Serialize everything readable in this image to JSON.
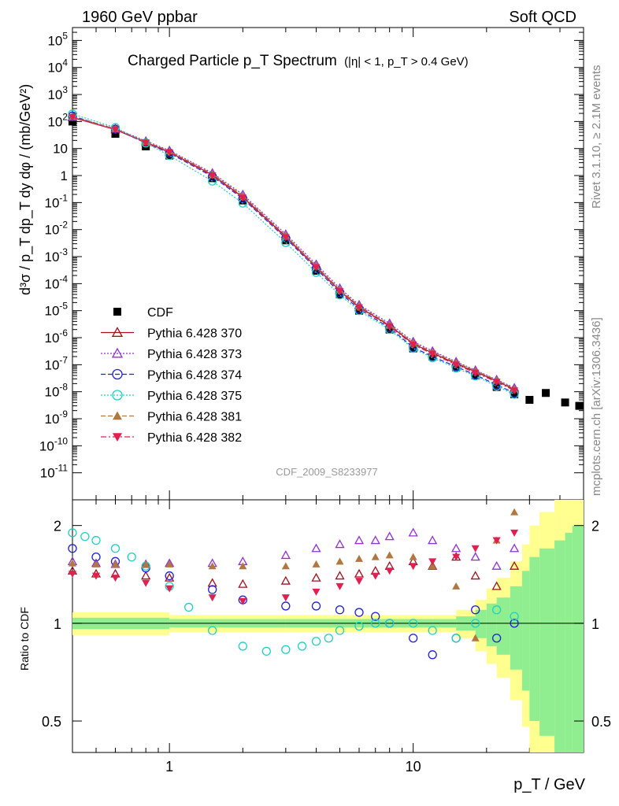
{
  "header": {
    "left": "1960 GeV ppbar",
    "right": "Soft QCD"
  },
  "side_labels": {
    "top": "Rivet 3.1.10, ≥ 2.1M events",
    "bottom": "mcplots.cern.ch [arXiv:1306.3436]"
  },
  "analysis_tag": "CDF_2009_S8233977",
  "chart_data": [
    {
      "type": "scatter",
      "title": "Charged Particle p_T Spectrum",
      "title_cut": "(|η| < 1, p_T > 0.4 GeV)",
      "xlabel": "p_T / GeV",
      "ylabel": "d³σ / p_T dp_T dy dφ / (mb/GeV²)",
      "xscale": "log",
      "yscale": "log",
      "xlim": [
        0.4,
        50
      ],
      "ylim": [
        1e-12,
        300000.0
      ],
      "x_tick_labels": [
        "1",
        "10"
      ],
      "y_tick_labels": [
        "10^-11",
        "10^-10",
        "10^-9",
        "10^-8",
        "10^-7",
        "10^-6",
        "10^-5",
        "10^-4",
        "10^-3",
        "10^-2",
        "10^-1",
        "1",
        "10",
        "10^2",
        "10^3",
        "10^4",
        "10^5"
      ],
      "legend_position": "bottom-left",
      "series": [
        {
          "name": "CDF",
          "color": "#000000",
          "marker": "square-filled",
          "line": "none",
          "x": [
            0.4,
            0.6,
            0.8,
            1.0,
            1.5,
            2.0,
            3.0,
            4.0,
            5.0,
            6.0,
            8.0,
            10.0,
            12.0,
            15.0,
            18.0,
            22.0,
            26.0,
            30.0,
            35.0,
            42.0,
            48.0
          ],
          "y": [
            100,
            35,
            12,
            5.5,
            0.8,
            0.12,
            0.004,
            0.0003,
            4e-05,
            1e-05,
            2e-06,
            4e-07,
            2e-07,
            8e-08,
            4e-08,
            1.5e-08,
            8e-09,
            5e-09,
            9e-09,
            4e-09,
            3e-09
          ]
        },
        {
          "name": "Pythia 6.428 370",
          "color": "#a01020",
          "marker": "triangle-open",
          "line": "solid",
          "x": [
            0.4,
            0.6,
            0.8,
            1.0,
            1.5,
            2.0,
            3.0,
            4.0,
            5.0,
            6.0,
            8.0,
            10.0,
            12.0,
            15.0,
            18.0,
            22.0,
            26.0
          ],
          "y": [
            140,
            50,
            17,
            7.5,
            1.05,
            0.16,
            0.0055,
            0.00042,
            5.5e-05,
            1.35e-05,
            2.8e-06,
            6e-07,
            2.7e-07,
            1.1e-07,
            5.5e-08,
            2.5e-08,
            1.2e-08
          ]
        },
        {
          "name": "Pythia 6.428 373",
          "color": "#9030d0",
          "marker": "triangle-open",
          "line": "dotted",
          "x": [
            0.4,
            0.6,
            0.8,
            1.0,
            1.5,
            2.0,
            3.0,
            4.0,
            5.0,
            6.0,
            8.0,
            10.0,
            12.0,
            15.0,
            18.0,
            22.0,
            26.0
          ],
          "y": [
            150,
            55,
            19,
            8.5,
            1.25,
            0.2,
            0.0068,
            0.00052,
            6.8e-05,
            1.65e-05,
            3.4e-06,
            7.2e-07,
            3.2e-07,
            1.3e-07,
            6.3e-08,
            2.8e-08,
            1.4e-08
          ]
        },
        {
          "name": "Pythia 6.428 374",
          "color": "#2020d0",
          "marker": "circle-open",
          "line": "dashed",
          "x": [
            0.4,
            0.6,
            0.8,
            1.0,
            1.5,
            2.0,
            3.0,
            4.0,
            5.0,
            6.0,
            8.0,
            10.0,
            12.0,
            15.0,
            18.0,
            22.0,
            26.0
          ],
          "y": [
            160,
            52,
            16,
            6.8,
            0.92,
            0.14,
            0.0048,
            0.00036,
            4.6e-05,
            1.15e-05,
            2.3e-06,
            4.4e-07,
            2e-07,
            8.5e-08,
            4.2e-08,
            1.8e-08,
            9e-09
          ]
        },
        {
          "name": "Pythia 6.428 375",
          "color": "#20d0c0",
          "marker": "circle-open",
          "line": "dotted",
          "x": [
            0.4,
            0.6,
            0.8,
            1.0,
            1.5,
            2.0,
            3.0,
            4.0,
            5.0,
            6.0,
            8.0,
            10.0,
            12.0,
            15.0,
            18.0,
            22.0,
            26.0
          ],
          "y": [
            190,
            60,
            16,
            5.5,
            0.62,
            0.095,
            0.0033,
            0.00026,
            3.8e-05,
            1e-05,
            2e-06,
            4e-07,
            1.8e-07,
            7.5e-08,
            3.8e-08,
            1.6e-08,
            8e-09
          ]
        },
        {
          "name": "Pythia 6.428 381",
          "color": "#b07840",
          "marker": "triangle-filled",
          "line": "dashed",
          "x": [
            0.4,
            0.6,
            0.8,
            1.0,
            1.5,
            2.0,
            3.0,
            4.0,
            5.0,
            6.0,
            8.0,
            10.0,
            12.0,
            15.0,
            18.0,
            22.0,
            26.0
          ],
          "y": [
            150,
            53,
            18,
            8.0,
            1.15,
            0.18,
            0.006,
            0.00045,
            6e-05,
            1.5e-05,
            3e-06,
            6.5e-07,
            3e-07,
            1.2e-07,
            6e-08,
            2.7e-08,
            1.3e-08
          ]
        },
        {
          "name": "Pythia 6.428 382",
          "color": "#e02050",
          "marker": "triangle-down-filled",
          "line": "dashdot",
          "x": [
            0.4,
            0.6,
            0.8,
            1.0,
            1.5,
            2.0,
            3.0,
            4.0,
            5.0,
            6.0,
            8.0,
            10.0,
            12.0,
            15.0,
            18.0,
            22.0,
            26.0
          ],
          "y": [
            145,
            50,
            16.5,
            7.2,
            1.0,
            0.15,
            0.0052,
            0.0004,
            5.2e-05,
            1.3e-05,
            2.6e-06,
            5.5e-07,
            2.5e-07,
            1e-07,
            5e-08,
            2.3e-08,
            1.1e-08
          ]
        }
      ]
    },
    {
      "type": "scatter",
      "title": "",
      "xlabel": "p_T / GeV",
      "ylabel": "Ratio to CDF",
      "xscale": "log",
      "yscale": "log",
      "xlim": [
        0.4,
        50
      ],
      "ylim": [
        0.4,
        2.4
      ],
      "x_tick_labels": [
        "1",
        "10"
      ],
      "y_tick_labels": [
        "0.5",
        "1",
        "2"
      ],
      "reference_line": 1,
      "uncertainty_bands": [
        {
          "name": "inner",
          "color": "#90ee90",
          "x": [
            0.4,
            1,
            3,
            8,
            12,
            15,
            18,
            20,
            22,
            25,
            28,
            30,
            33,
            38,
            42,
            45,
            50
          ],
          "lo": [
            0.96,
            0.97,
            0.97,
            0.97,
            0.97,
            0.95,
            0.9,
            0.85,
            0.8,
            0.72,
            0.62,
            0.5,
            0.45,
            0.4,
            0.4,
            0.4,
            0.4
          ],
          "hi": [
            1.04,
            1.03,
            1.03,
            1.03,
            1.03,
            1.05,
            1.1,
            1.15,
            1.2,
            1.3,
            1.45,
            1.6,
            1.7,
            1.8,
            1.9,
            2.0,
            2.1
          ]
        },
        {
          "name": "outer",
          "color": "#ffff90",
          "x": [
            0.4,
            1,
            3,
            8,
            12,
            15,
            18,
            20,
            22,
            25,
            28,
            30,
            33,
            38,
            42,
            45,
            50
          ],
          "lo": [
            0.92,
            0.94,
            0.94,
            0.94,
            0.94,
            0.9,
            0.82,
            0.75,
            0.68,
            0.58,
            0.48,
            0.4,
            0.4,
            0.4,
            0.4,
            0.4,
            0.4
          ],
          "hi": [
            1.08,
            1.06,
            1.06,
            1.06,
            1.06,
            1.1,
            1.18,
            1.28,
            1.38,
            1.55,
            1.75,
            2.0,
            2.2,
            2.4,
            2.4,
            2.4,
            2.4
          ]
        }
      ],
      "series": [
        {
          "name": "Pythia 6.428 370",
          "color": "#a01020",
          "marker": "triangle-open",
          "x": [
            0.4,
            0.5,
            0.6,
            0.8,
            1.0,
            1.5,
            2.0,
            3.0,
            4.0,
            5.0,
            6.0,
            7.0,
            8.0,
            10.0,
            12.0,
            15.0,
            18.0,
            22.0,
            26.0
          ],
          "y": [
            1.45,
            1.42,
            1.42,
            1.4,
            1.38,
            1.33,
            1.32,
            1.35,
            1.38,
            1.4,
            1.42,
            1.45,
            1.5,
            1.55,
            1.5,
            1.6,
            1.4,
            1.3,
            1.5
          ]
        },
        {
          "name": "Pythia 6.428 373",
          "color": "#9030d0",
          "marker": "triangle-open",
          "x": [
            0.4,
            0.5,
            0.6,
            0.8,
            1.0,
            1.5,
            2.0,
            3.0,
            4.0,
            5.0,
            6.0,
            7.0,
            8.0,
            10.0,
            12.0,
            15.0,
            18.0,
            22.0,
            26.0
          ],
          "y": [
            1.55,
            1.53,
            1.52,
            1.52,
            1.53,
            1.53,
            1.55,
            1.62,
            1.7,
            1.75,
            1.8,
            1.8,
            1.85,
            1.9,
            1.8,
            1.7,
            1.6,
            1.5,
            1.7
          ]
        },
        {
          "name": "Pythia 6.428 374",
          "color": "#2020d0",
          "marker": "circle-open",
          "x": [
            0.4,
            0.5,
            0.6,
            0.8,
            1.0,
            1.5,
            2.0,
            3.0,
            4.0,
            5.0,
            6.0,
            7.0,
            8.0,
            10.0,
            12.0,
            15.0,
            18.0,
            22.0,
            26.0
          ],
          "y": [
            1.7,
            1.6,
            1.55,
            1.48,
            1.4,
            1.27,
            1.18,
            1.13,
            1.13,
            1.1,
            1.08,
            1.05,
            1.0,
            0.9,
            0.8,
            0.9,
            1.1,
            0.9,
            1.0
          ]
        },
        {
          "name": "Pythia 6.428 375",
          "color": "#20d0c0",
          "marker": "circle-open",
          "x": [
            0.4,
            0.45,
            0.5,
            0.6,
            0.7,
            0.8,
            1.0,
            1.2,
            1.5,
            2.0,
            2.5,
            3.0,
            3.5,
            4.0,
            4.5,
            5.0,
            6.0,
            7.0,
            8.0,
            10.0,
            12.0,
            15.0,
            18.0,
            22.0,
            26.0
          ],
          "y": [
            1.9,
            1.85,
            1.8,
            1.7,
            1.6,
            1.5,
            1.3,
            1.12,
            0.95,
            0.85,
            0.82,
            0.83,
            0.85,
            0.88,
            0.9,
            0.95,
            0.98,
            1.0,
            1.0,
            1.0,
            0.95,
            0.9,
            1.0,
            1.1,
            1.05
          ]
        },
        {
          "name": "Pythia 6.428 381",
          "color": "#b07840",
          "marker": "triangle-filled",
          "x": [
            0.4,
            0.5,
            0.6,
            0.8,
            1.0,
            1.5,
            2.0,
            3.0,
            4.0,
            5.0,
            6.0,
            7.0,
            8.0,
            10.0,
            12.0,
            15.0,
            18.0,
            22.0,
            26.0
          ],
          "y": [
            1.53,
            1.52,
            1.52,
            1.52,
            1.52,
            1.5,
            1.5,
            1.5,
            1.52,
            1.55,
            1.58,
            1.6,
            1.62,
            1.6,
            1.5,
            1.3,
            0.9,
            1.8,
            2.2
          ]
        },
        {
          "name": "Pythia 6.428 382",
          "color": "#e02050",
          "marker": "triangle-down-filled",
          "x": [
            0.4,
            0.5,
            0.6,
            0.8,
            1.0,
            1.5,
            2.0,
            3.0,
            4.0,
            5.0,
            6.0,
            7.0,
            8.0,
            10.0,
            12.0,
            15.0,
            18.0,
            22.0,
            26.0
          ],
          "y": [
            1.42,
            1.4,
            1.38,
            1.33,
            1.28,
            1.2,
            1.17,
            1.2,
            1.25,
            1.3,
            1.35,
            1.4,
            1.45,
            1.5,
            1.55,
            1.6,
            1.7,
            1.8,
            1.9
          ]
        }
      ]
    }
  ]
}
